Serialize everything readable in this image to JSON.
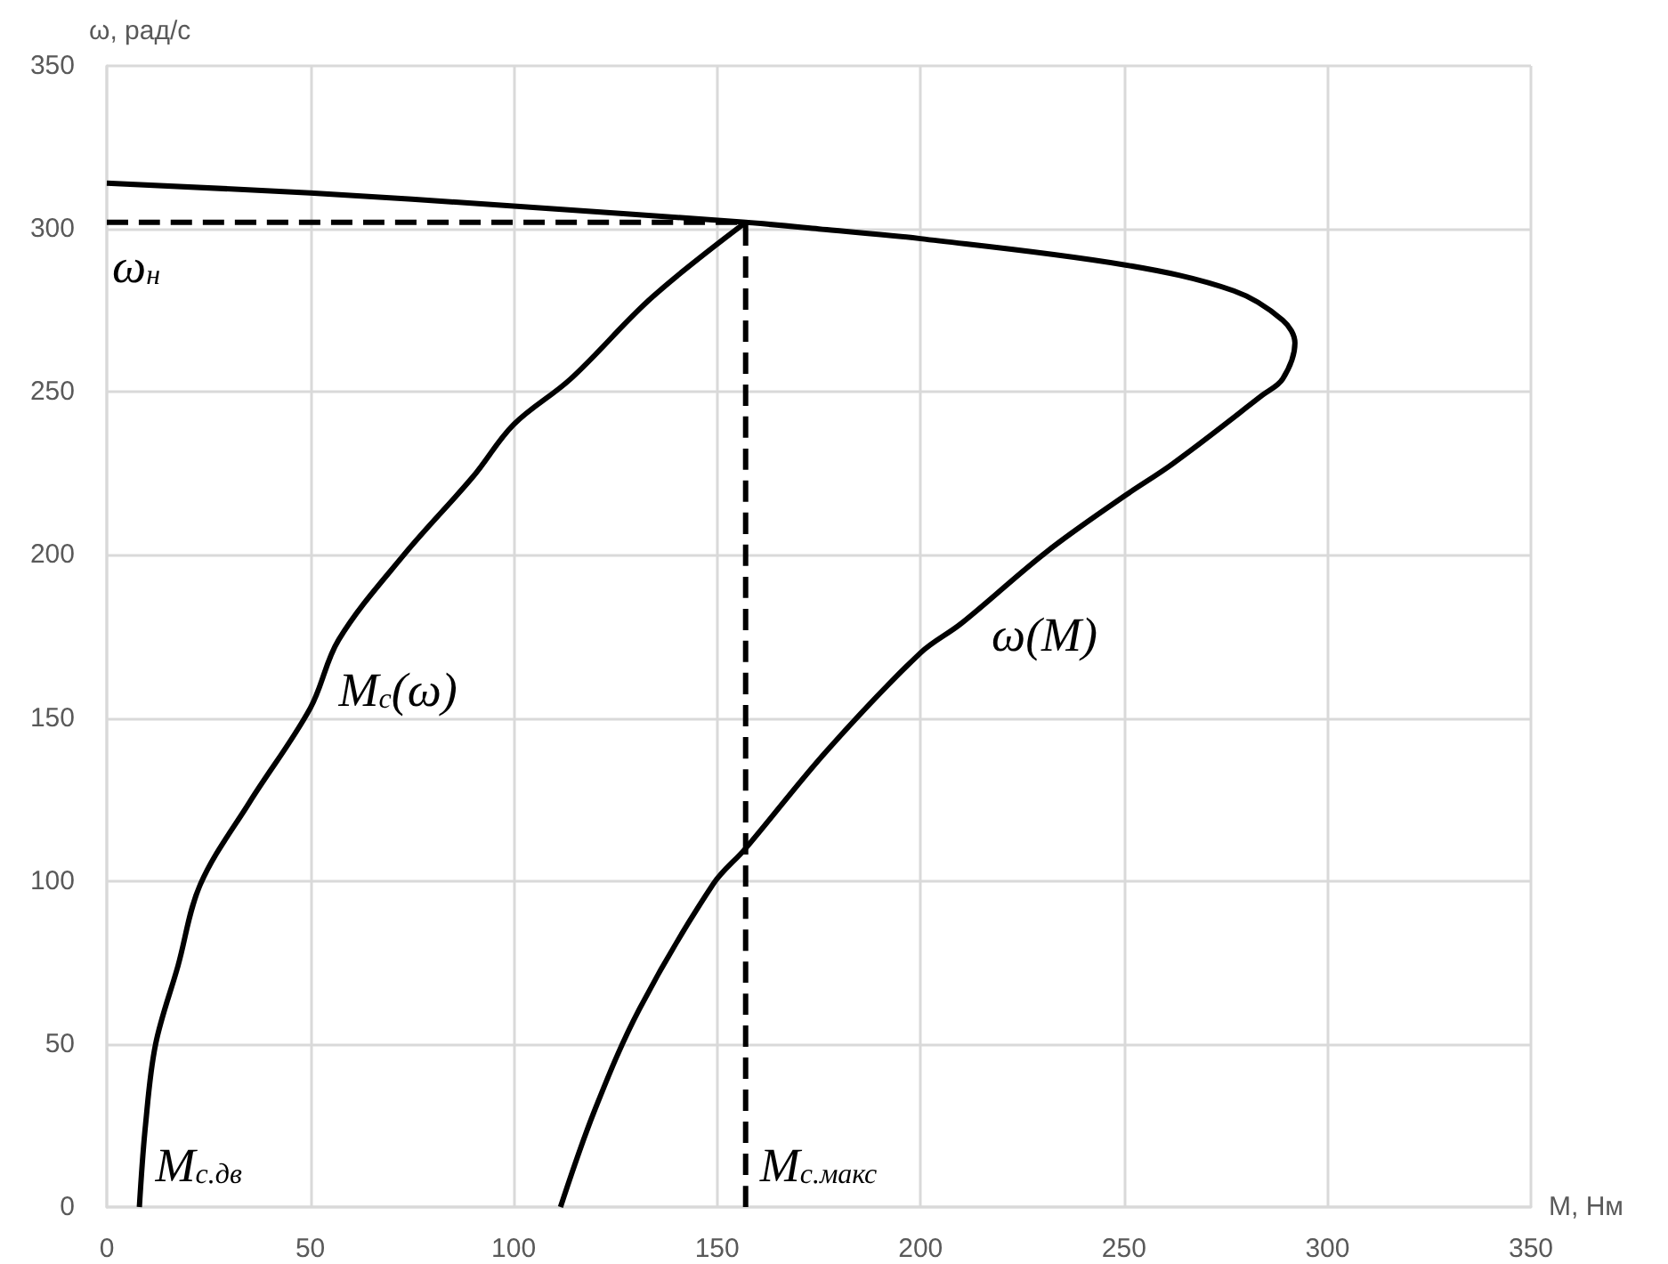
{
  "chart_data": {
    "type": "line",
    "xlabel": "M, Нм",
    "ylabel": "ω, рад/с",
    "xlim": [
      0,
      350
    ],
    "xticks": [
      0,
      50,
      100,
      150,
      200,
      250,
      300,
      350
    ],
    "ylim": [
      0,
      350
    ],
    "yticks": [
      0,
      50,
      100,
      150,
      200,
      250,
      300,
      350
    ],
    "grid": true,
    "marker": "none",
    "series": [
      {
        "color": "#000000",
        "line_style": "solid",
        "x": [
          0,
          50,
          100,
          157,
          175,
          200,
          250,
          277,
          289,
          292,
          289,
          284,
          262,
          250,
          231,
          210,
          200,
          177,
          157,
          149,
          131,
          120,
          111.5
        ],
        "values": [
          314,
          311,
          307,
          302,
          300,
          297,
          289,
          281,
          272,
          265,
          254,
          249,
          228,
          218,
          201,
          179,
          170,
          140,
          110,
          99,
          61,
          30,
          0
        ]
      },
      {
        "color": "#000000",
        "line_style": "solid",
        "x": [
          8,
          9.5,
          12,
          17.5,
          23,
          35,
          50,
          57,
          73,
          90,
          100,
          114,
          134,
          157
        ],
        "values": [
          0,
          25,
          50,
          74,
          99,
          124,
          153,
          174,
          200,
          224,
          240,
          254,
          279,
          302
        ]
      },
      {
        "color": "#000000",
        "line_style": "dashed",
        "x": [
          0,
          157
        ],
        "values": [
          302,
          302
        ]
      },
      {
        "color": "#000000",
        "line_style": "dashed",
        "x": [
          157,
          157
        ],
        "values": [
          0,
          302
        ]
      }
    ],
    "annotations": [
      {
        "text": "ω$_{н}$",
        "x": 0,
        "y": 302
      },
      {
        "text": "M$_{c}$(ω)",
        "x": 50,
        "y": 153
      },
      {
        "text": "ω(M)",
        "x": 210,
        "y": 179
      },
      {
        "text": "M$_{c.дв}$",
        "x": 8,
        "y": 0
      },
      {
        "text": "M$_{c.макс}$",
        "x": 157,
        "y": 0
      }
    ]
  }
}
